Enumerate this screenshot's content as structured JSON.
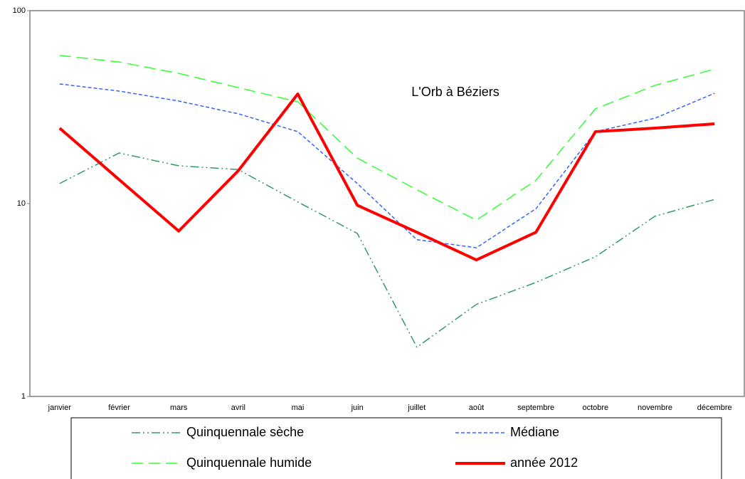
{
  "chart_data": {
    "type": "line",
    "annotation": "L'Orb à Béziers",
    "categories": [
      "janvier",
      "février",
      "mars",
      "avril",
      "mai",
      "juin",
      "juillet",
      "août",
      "septembre",
      "octobre",
      "novembre",
      "décembre"
    ],
    "series": [
      {
        "name": "Quinquennale sèche",
        "color": "#339966",
        "dash": "12 4 2 4 2 4",
        "width": 1.5,
        "values": [
          12.7,
          18.3,
          15.7,
          15.0,
          10.2,
          7.0,
          1.8,
          3.0,
          3.9,
          5.3,
          8.6,
          10.5
        ]
      },
      {
        "name": "Médiane",
        "color": "#3366ff",
        "dash": "5 3",
        "width": 1.5,
        "values": [
          41.7,
          38.3,
          34,
          29.2,
          23.6,
          12.7,
          6.5,
          5.9,
          9.4,
          23.6,
          27.7,
          37.3
        ]
      },
      {
        "name": "Quinquennale humide",
        "color": "#33ff33",
        "dash": "16 8",
        "width": 1.5,
        "values": [
          58.6,
          54.2,
          47.3,
          39.9,
          33.7,
          17.2,
          11.8,
          8.2,
          13.2,
          31,
          41,
          49.8
        ]
      },
      {
        "name": "année 2012",
        "color": "#ff0000",
        "dash": "none",
        "width": 4,
        "values": [
          24.6,
          13.3,
          7.2,
          14.8,
          37,
          9.8,
          7.1,
          5.1,
          7.1,
          23.6,
          24.6,
          25.9
        ]
      }
    ],
    "ylim": [
      1,
      100
    ],
    "yticks": [
      1,
      10,
      100
    ],
    "log": true,
    "grid": false,
    "legend": "bottom"
  }
}
